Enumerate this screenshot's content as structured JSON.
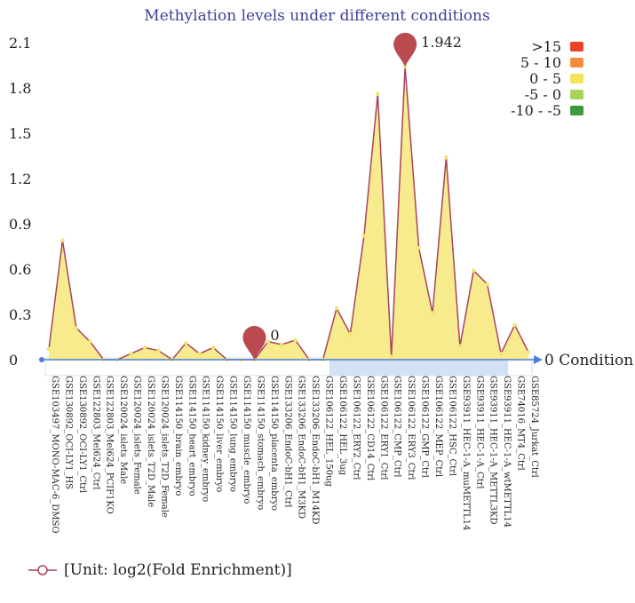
{
  "chart_data": {
    "type": "area",
    "title": "Methylation levels under different conditions",
    "xlabel": "Condition",
    "x_axis_end_label": "0",
    "ylabel": "",
    "ylim": [
      0,
      2.1
    ],
    "yticks": [
      "0",
      "0.3",
      "0.6",
      "0.9",
      "1.2",
      "1.5",
      "1.8",
      "2.1"
    ],
    "grid": false,
    "categories": [
      "GSE103497_MONO-MAC-6_DMSO",
      "GSE130892_OCI-LY1_HS",
      "GSE130892_OCI-LY1_Ctrl",
      "GSE122803_Mel624_Ctrl",
      "GSE122803_Mel624_PCIF1KO",
      "GSE120024_islets_Male",
      "GSE120024_islets_Female",
      "GSE120024_islets_T2D_Male",
      "GSE120024_islets_T2D_Female",
      "GSE114150_brain_embryo",
      "GSE114150_heart_embryo",
      "GSE114150_kidney_embryo",
      "GSE114150_liver_embryo",
      "GSE114150_lung_embryo",
      "GSE114150_muscle_embryo",
      "GSE114150_stomach_embryo",
      "GSE114150_placenta_embryo",
      "GSE133206_EndoC-bH1_Ctrl",
      "GSE133206_EndoC-bH1_M3KD",
      "GSE133206_EndoC-bH1_M14KD",
      "GSE106122_HEL_150ug",
      "GSE106122_HEL_3ug",
      "GSE106122_ERY2_Ctrl",
      "GSE106122_CD14_Ctrl",
      "GSE106122_ERY1_Ctrl",
      "GSE106122_CMP_Ctrl",
      "GSE106122_ERY3_Ctrl",
      "GSE106122_GMP_Ctrl",
      "GSE106122_MEP_Ctrl",
      "GSE106122_HSC_Ctrl",
      "GSE93911_HEC-1-A_muMETTL14",
      "GSE93911_HEC-1-A_Ctrl",
      "GSE93911_HEC-1-A_METTL3KD",
      "GSE93911_HEC-1-A_wtMETTL14",
      "GSE74016_MT4_Ctrl",
      "GSE85724_Jurkat_Ctrl"
    ],
    "series": [
      {
        "name": "[Unit: log2(Fold Enrichment)]",
        "values": [
          0.07,
          0.79,
          0.21,
          0.12,
          0.0,
          0.0,
          0.04,
          0.08,
          0.06,
          0.0,
          0.11,
          0.04,
          0.08,
          0.0,
          0.0,
          0.0,
          0.12,
          0.1,
          0.13,
          0.0,
          0.0,
          0.34,
          0.17,
          0.82,
          1.76,
          0.02,
          1.942,
          0.74,
          0.31,
          1.34,
          0.09,
          0.59,
          0.5,
          0.04,
          0.23,
          0.05
        ]
      }
    ],
    "annotations": [
      {
        "label": "1.942",
        "category": "GSE106122_ERY3_Ctrl",
        "value": 1.942
      },
      {
        "label": "0",
        "category": "GSE114150_stomach_embryo",
        "value": 0
      }
    ],
    "visual_map": {
      "items": [
        {
          "label": ">15",
          "color": "#e8432a"
        },
        {
          "label": "5 - 10",
          "color": "#f58c3c"
        },
        {
          "label": "0 - 5",
          "color": "#f5e35a"
        },
        {
          "label": "-5 - 0",
          "color": "#a8d25a"
        },
        {
          "label": "-10 - -5",
          "color": "#3e9a3e"
        }
      ]
    },
    "colors": {
      "title": "#3e3f98",
      "line": "#a8445a",
      "area": "#f7eb8e",
      "point": "#f3e46a",
      "marker": "#b84a50",
      "axis": "#4a7fd8",
      "zoom_band": "#c8daf2"
    }
  }
}
